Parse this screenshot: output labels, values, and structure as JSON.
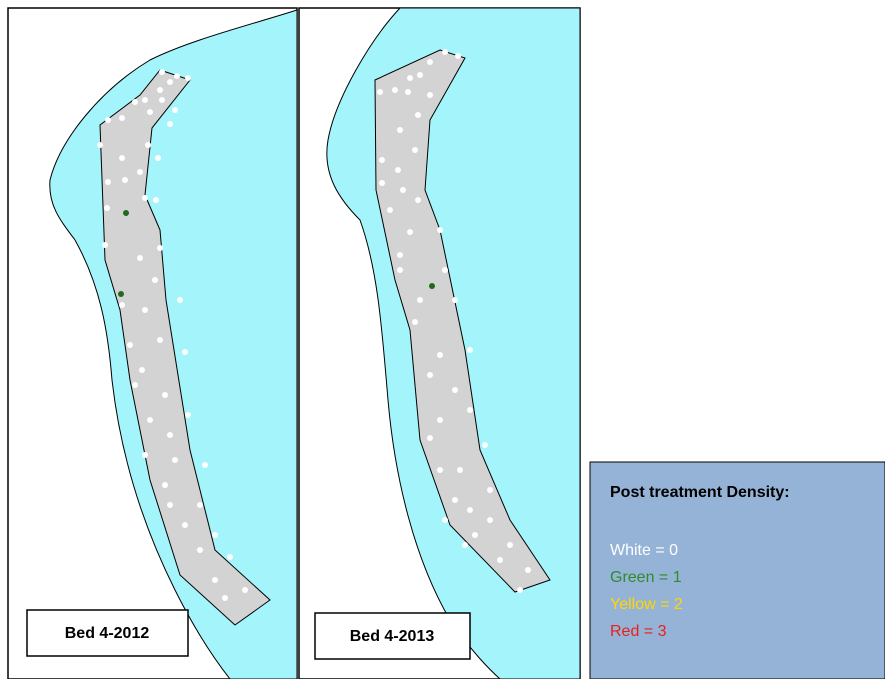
{
  "panels": [
    {
      "label": "Bed 4-2012"
    },
    {
      "label": "Bed 4-2013"
    }
  ],
  "legend": {
    "title": "Post treatment Density:",
    "items": [
      "White = 0",
      "Green = 1",
      "Yellow = 2",
      "Red = 3"
    ]
  }
}
